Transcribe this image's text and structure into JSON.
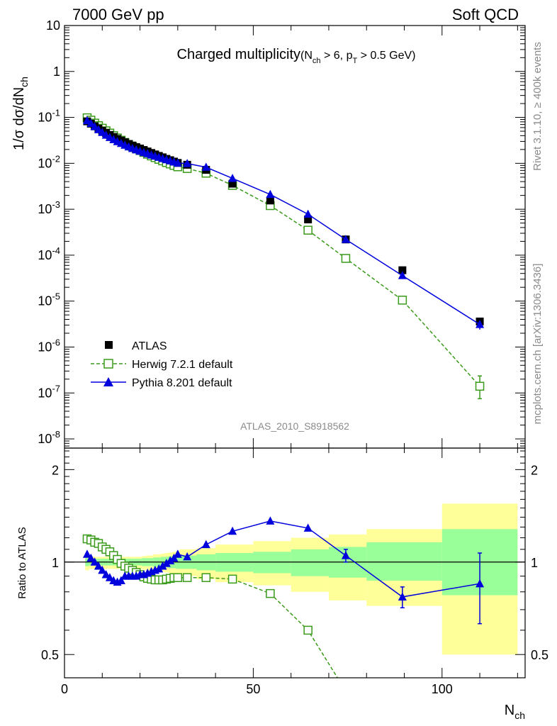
{
  "header": {
    "left": "7000 GeV pp",
    "right": "Soft QCD"
  },
  "side_labels": {
    "rivet": "Rivet 3.1.10, ≥ 400k events",
    "mcplots": "mcplots.cern.ch [arXiv:1306.3436]"
  },
  "analysis_id": "ATLAS_2010_S8918562",
  "colors": {
    "atlas": "#000000",
    "herwig": "#3a9a1a",
    "pythia": "#0000dd",
    "band_outer": "#ffff99",
    "band_inner": "#99ff99"
  },
  "chart_data": [
    {
      "type": "scatter",
      "title": "Charged multiplicity",
      "title_cut_parts": [
        "(N",
        "ch",
        " > 6, p",
        "T",
        " > 0.5 GeV)"
      ],
      "ylabel_parts": [
        "1/σ dσ/dN",
        "ch"
      ],
      "xlabel_parts": [
        "N",
        "ch"
      ],
      "xlim": [
        0,
        122
      ],
      "ylim_log10": [
        -8.2,
        1
      ],
      "y_scale": "log",
      "y_tick_labels": [
        "10",
        "1",
        "10^-1",
        "10^-2",
        "10^-3",
        "10^-4",
        "10^-5",
        "10^-6",
        "10^-7",
        "10^-8"
      ],
      "legend_position": "bottom-left",
      "legend": [
        {
          "name": "ATLAS",
          "marker": "filled-square"
        },
        {
          "name": "Herwig 7.2.1 default",
          "marker": "open-square-dashed"
        },
        {
          "name": "Pythia 8.201 default",
          "marker": "filled-triangle-line"
        }
      ],
      "series": [
        {
          "name": "ATLAS",
          "x": [
            6,
            7,
            8,
            9,
            10,
            11,
            12,
            13,
            14,
            15,
            16,
            17,
            18,
            19,
            20,
            21,
            22,
            23,
            24,
            25,
            26,
            27,
            28,
            29,
            30,
            32.5,
            37.5,
            44.5,
            54.5,
            64.5,
            74.5,
            89.5,
            110
          ],
          "y": [
            0.082,
            0.073,
            0.064,
            0.057,
            0.051,
            0.046,
            0.0415,
            0.0375,
            0.034,
            0.0312,
            0.0287,
            0.0264,
            0.0244,
            0.0226,
            0.021,
            0.0195,
            0.0181,
            0.0168,
            0.0156,
            0.0145,
            0.0135,
            0.0125,
            0.0117,
            0.0109,
            0.0102,
            0.0093,
            0.0072,
            0.0036,
            0.00155,
            0.0006,
            0.00022,
            4.7e-05,
            3.6e-06
          ]
        },
        {
          "name": "Herwig 7.2.1 default",
          "x": [
            6,
            7,
            8,
            9,
            10,
            11,
            12,
            13,
            14,
            15,
            16,
            17,
            18,
            19,
            20,
            21,
            22,
            23,
            24,
            25,
            26,
            27,
            28,
            29,
            30,
            32.5,
            37.5,
            44.5,
            54.5,
            64.5,
            74.5,
            89.5,
            110
          ],
          "y": [
            0.098,
            0.087,
            0.075,
            0.066,
            0.058,
            0.051,
            0.0455,
            0.04,
            0.0356,
            0.0318,
            0.0285,
            0.0256,
            0.0231,
            0.0209,
            0.019,
            0.0173,
            0.0158,
            0.0145,
            0.0133,
            0.0122,
            0.0113,
            0.0104,
            0.0097,
            0.009,
            0.0084,
            0.0077,
            0.0061,
            0.0033,
            0.0012,
            0.00035,
            8.5e-05,
            1.05e-05,
            1.4e-07
          ]
        },
        {
          "name": "Pythia 8.201 default",
          "x": [
            6,
            7,
            8,
            9,
            10,
            11,
            12,
            13,
            14,
            15,
            16,
            17,
            18,
            19,
            20,
            21,
            22,
            23,
            24,
            25,
            26,
            27,
            28,
            29,
            30,
            32.5,
            37.5,
            44.5,
            54.5,
            64.5,
            74.5,
            89.5,
            110
          ],
          "y": [
            0.085,
            0.074,
            0.063,
            0.054,
            0.047,
            0.041,
            0.0365,
            0.0328,
            0.0297,
            0.0271,
            0.0248,
            0.0228,
            0.0211,
            0.0196,
            0.0184,
            0.0172,
            0.0162,
            0.0152,
            0.0143,
            0.0135,
            0.0127,
            0.012,
            0.0113,
            0.0107,
            0.0101,
            0.0099,
            0.0082,
            0.0047,
            0.0021,
            0.00078,
            0.00022,
            3.6e-05,
            3.1e-06
          ]
        }
      ]
    },
    {
      "type": "line",
      "ylabel": "Ratio to ATLAS",
      "xlim": [
        0,
        122
      ],
      "ylim_log": [
        0.42,
        2.35
      ],
      "y_scale": "log",
      "x_tick_labels": [
        "0",
        "50",
        "100"
      ],
      "y_tick_labels": [
        "0.5",
        "1",
        "2"
      ],
      "reference_line": 1,
      "uncertainty_bands": {
        "bins": [
          [
            5.5,
            6.5
          ],
          [
            6.5,
            7.5
          ],
          [
            7.5,
            8.5
          ],
          [
            8.5,
            9.5
          ],
          [
            9.5,
            10.5
          ],
          [
            10.5,
            11.5
          ],
          [
            11.5,
            12.5
          ],
          [
            12.5,
            13.5
          ],
          [
            13.5,
            14.5
          ],
          [
            14.5,
            15.5
          ],
          [
            15.5,
            16.5
          ],
          [
            16.5,
            17.5
          ],
          [
            17.5,
            18.5
          ],
          [
            18.5,
            19.5
          ],
          [
            19.5,
            20.5
          ],
          [
            20.5,
            21.5
          ],
          [
            21.5,
            22.5
          ],
          [
            22.5,
            23.5
          ],
          [
            23.5,
            24.5
          ],
          [
            24.5,
            25.5
          ],
          [
            25.5,
            26.5
          ],
          [
            26.5,
            27.5
          ],
          [
            27.5,
            28.5
          ],
          [
            28.5,
            29.5
          ],
          [
            29.5,
            30.5
          ],
          [
            30.5,
            35
          ],
          [
            35,
            40
          ],
          [
            40,
            50
          ],
          [
            50,
            60
          ],
          [
            60,
            70
          ],
          [
            70,
            80
          ],
          [
            80,
            100
          ],
          [
            100,
            120
          ]
        ],
        "outer_lo": [
          0.94,
          0.95,
          0.95,
          0.95,
          0.95,
          0.95,
          0.95,
          0.95,
          0.95,
          0.95,
          0.95,
          0.95,
          0.95,
          0.95,
          0.95,
          0.945,
          0.94,
          0.94,
          0.935,
          0.93,
          0.93,
          0.925,
          0.92,
          0.915,
          0.91,
          0.9,
          0.88,
          0.86,
          0.84,
          0.8,
          0.75,
          0.72,
          0.5
        ],
        "outer_hi": [
          1.05,
          1.04,
          1.04,
          1.04,
          1.04,
          1.04,
          1.04,
          1.04,
          1.04,
          1.04,
          1.04,
          1.04,
          1.04,
          1.04,
          1.04,
          1.045,
          1.05,
          1.05,
          1.06,
          1.06,
          1.065,
          1.07,
          1.075,
          1.08,
          1.085,
          1.1,
          1.11,
          1.14,
          1.17,
          1.2,
          1.23,
          1.28,
          1.55
        ],
        "inner_lo": [
          0.97,
          0.975,
          0.975,
          0.975,
          0.975,
          0.975,
          0.975,
          0.975,
          0.975,
          0.975,
          0.975,
          0.975,
          0.975,
          0.975,
          0.975,
          0.97,
          0.97,
          0.97,
          0.965,
          0.965,
          0.96,
          0.96,
          0.955,
          0.955,
          0.95,
          0.95,
          0.94,
          0.93,
          0.92,
          0.9,
          0.89,
          0.87,
          0.78
        ],
        "inner_hi": [
          1.03,
          1.025,
          1.025,
          1.025,
          1.025,
          1.025,
          1.025,
          1.025,
          1.025,
          1.025,
          1.025,
          1.025,
          1.025,
          1.025,
          1.025,
          1.03,
          1.03,
          1.03,
          1.035,
          1.035,
          1.04,
          1.04,
          1.045,
          1.045,
          1.05,
          1.05,
          1.06,
          1.07,
          1.08,
          1.1,
          1.12,
          1.16,
          1.28
        ]
      },
      "series": [
        {
          "name": "Herwig 7.2.1 default",
          "x": [
            6,
            7,
            8,
            9,
            10,
            11,
            12,
            13,
            14,
            15,
            16,
            17,
            18,
            19,
            20,
            21,
            22,
            23,
            24,
            25,
            26,
            27,
            28,
            29,
            30,
            32.5,
            37.5,
            44.5,
            54.5,
            64.5,
            74.5
          ],
          "y": [
            1.19,
            1.18,
            1.16,
            1.15,
            1.12,
            1.1,
            1.08,
            1.05,
            1.02,
            0.99,
            0.97,
            0.955,
            0.94,
            0.925,
            0.91,
            0.895,
            0.885,
            0.88,
            0.875,
            0.875,
            0.875,
            0.88,
            0.885,
            0.89,
            0.89,
            0.89,
            0.89,
            0.88,
            0.79,
            0.6,
            0.38
          ]
        },
        {
          "name": "Pythia 8.201 default",
          "x": [
            6,
            7,
            8,
            9,
            10,
            11,
            12,
            13,
            14,
            15,
            16,
            17,
            18,
            19,
            20,
            21,
            22,
            23,
            24,
            25,
            26,
            27,
            28,
            29,
            30,
            32.5,
            37.5,
            44.5,
            54.5,
            64.5,
            74.5,
            89.5,
            110
          ],
          "y": [
            1.06,
            1.03,
            1.0,
            0.97,
            0.94,
            0.91,
            0.89,
            0.87,
            0.86,
            0.87,
            0.9,
            0.9,
            0.9,
            0.9,
            0.91,
            0.91,
            0.92,
            0.93,
            0.94,
            0.95,
            0.97,
            0.99,
            1.01,
            1.03,
            1.06,
            1.04,
            1.14,
            1.26,
            1.36,
            1.29,
            1.05,
            0.77,
            0.85
          ],
          "y_err": [
            0,
            0,
            0,
            0,
            0,
            0,
            0,
            0,
            0,
            0,
            0,
            0,
            0,
            0,
            0,
            0,
            0,
            0,
            0,
            0,
            0,
            0,
            0,
            0,
            0,
            0,
            0,
            0,
            0,
            0,
            0.05,
            0.06,
            0.22
          ]
        }
      ]
    }
  ]
}
